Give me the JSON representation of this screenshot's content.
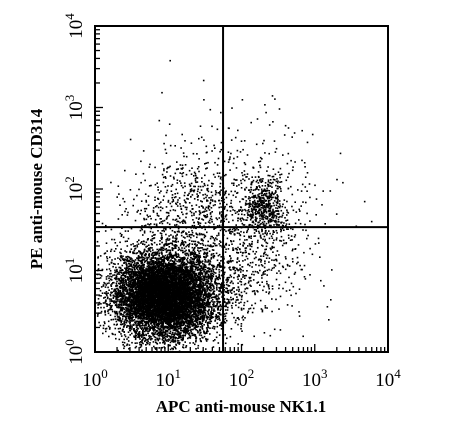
{
  "chart_data": {
    "type": "scatter",
    "title": "",
    "xlabel": "APC anti-mouse NK1.1",
    "ylabel": "PE anti-mouse CD314",
    "xscale": "log",
    "yscale": "log",
    "xlim": [
      1,
      10000
    ],
    "ylim": [
      1,
      10000
    ],
    "xticks": [
      {
        "base": "10",
        "exp": "0"
      },
      {
        "base": "10",
        "exp": "1"
      },
      {
        "base": "10",
        "exp": "2"
      },
      {
        "base": "10",
        "exp": "3"
      },
      {
        "base": "10",
        "exp": "4"
      }
    ],
    "yticks": [
      {
        "base": "10",
        "exp": "0"
      },
      {
        "base": "10",
        "exp": "1"
      },
      {
        "base": "10",
        "exp": "2"
      },
      {
        "base": "10",
        "exp": "3"
      },
      {
        "base": "10",
        "exp": "4"
      }
    ],
    "gates": {
      "x": 56,
      "y": 34
    },
    "grid": false,
    "legend": "none",
    "point_color": "#000000",
    "populations": [
      {
        "center": [
          10,
          5
        ],
        "spread_decades": [
          0.32,
          0.26
        ],
        "count": 6500
      },
      {
        "center": [
          5,
          5
        ],
        "spread_decades": [
          0.28,
          0.22
        ],
        "count": 1800
      },
      {
        "center": [
          15,
          8
        ],
        "spread_decades": [
          0.5,
          0.35
        ],
        "count": 1200
      },
      {
        "center": [
          200,
          60
        ],
        "spread_decades": [
          0.14,
          0.17
        ],
        "count": 500
      },
      {
        "center": [
          20,
          60
        ],
        "spread_decades": [
          0.45,
          0.3
        ],
        "count": 450
      },
      {
        "center": [
          150,
          15
        ],
        "spread_decades": [
          0.4,
          0.38
        ],
        "count": 400
      },
      {
        "center": [
          100,
          100
        ],
        "spread_decades": [
          0.65,
          0.35
        ],
        "count": 260
      },
      {
        "center": [
          50,
          300
        ],
        "spread_decades": [
          0.6,
          0.4
        ],
        "count": 60
      }
    ]
  }
}
